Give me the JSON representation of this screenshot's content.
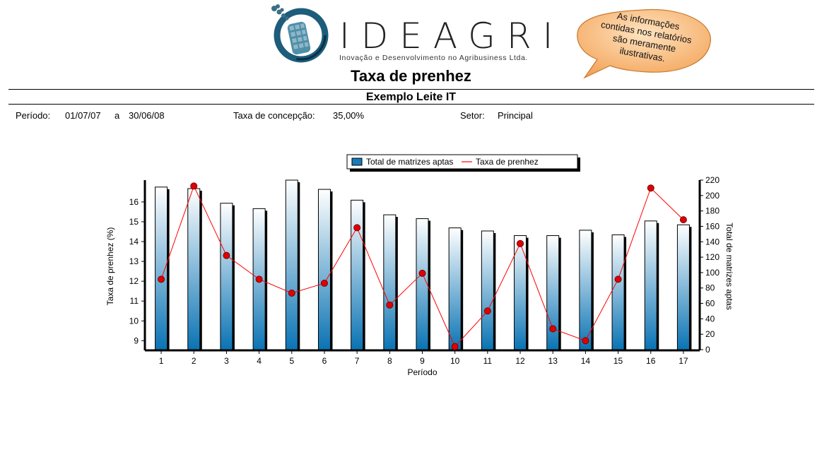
{
  "header": {
    "brand_name": "IDEAGRI",
    "brand_tagline": "Inovação e Desenvolvimento no Agribusiness Ltda.",
    "disclaimer_lines": [
      "As informações",
      "contidas nos relatórios",
      "são meramente",
      "ilustrativas."
    ],
    "report_title": "Taxa de prenhez",
    "report_subtitle": "Exemplo Leite IT"
  },
  "info": {
    "period_label": "Período:",
    "period_start": "01/07/07",
    "period_sep": "a",
    "period_end": "30/06/08",
    "conception_label": "Taxa de concepção:",
    "conception_value": "35,00%",
    "sector_label": "Setor:",
    "sector_value": "Principal"
  },
  "colors": {
    "bar": "#1a7ab8",
    "line": "#ff0000",
    "marker": "#e00000"
  },
  "chart_data": {
    "type": "bar+line",
    "xlabel": "Período",
    "ylabel_left": "Taxa de prenhez (%)",
    "ylabel_right": "Total de matrizes aptas",
    "categories": [
      "1",
      "2",
      "3",
      "4",
      "5",
      "6",
      "7",
      "8",
      "9",
      "10",
      "11",
      "12",
      "13",
      "14",
      "15",
      "16",
      "17"
    ],
    "left_ticks": [
      9,
      10,
      11,
      12,
      13,
      14,
      15,
      16
    ],
    "right_ticks": [
      0,
      20,
      40,
      60,
      80,
      100,
      120,
      140,
      160,
      180,
      200,
      220
    ],
    "ylim_left": [
      8.55,
      17.1
    ],
    "ylim_right": [
      0,
      220
    ],
    "legend_position": "top-center",
    "series": [
      {
        "name": "Total de matrizes aptas",
        "type": "bar",
        "axis": "right",
        "values": [
          211,
          209,
          190,
          183,
          220,
          208,
          194,
          175,
          170,
          158,
          154,
          148,
          148,
          155,
          149,
          167,
          162
        ]
      },
      {
        "name": "Taxa de prenhez",
        "type": "line",
        "axis": "left",
        "values": [
          12.1,
          16.8,
          13.3,
          12.1,
          11.4,
          11.9,
          14.7,
          10.8,
          12.4,
          8.7,
          10.5,
          13.9,
          9.6,
          9.0,
          12.1,
          16.7,
          15.1
        ]
      }
    ]
  }
}
